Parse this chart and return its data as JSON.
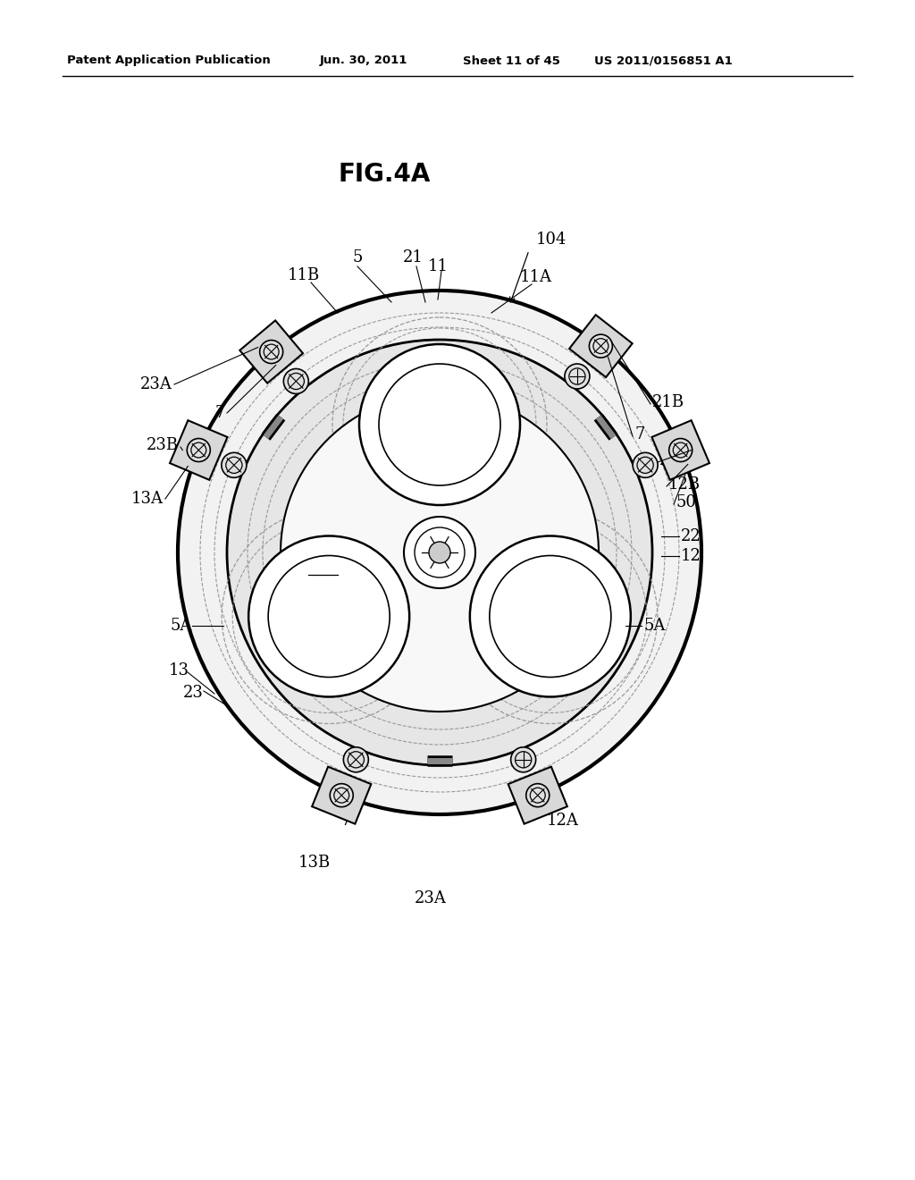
{
  "bg_color": "#ffffff",
  "header_text": "Patent Application Publication",
  "header_date": "Jun. 30, 2011",
  "header_sheet": "Sheet 11 of 45",
  "header_patent": "US 2011/0156851 A1",
  "figure_title": "FIG.4A"
}
